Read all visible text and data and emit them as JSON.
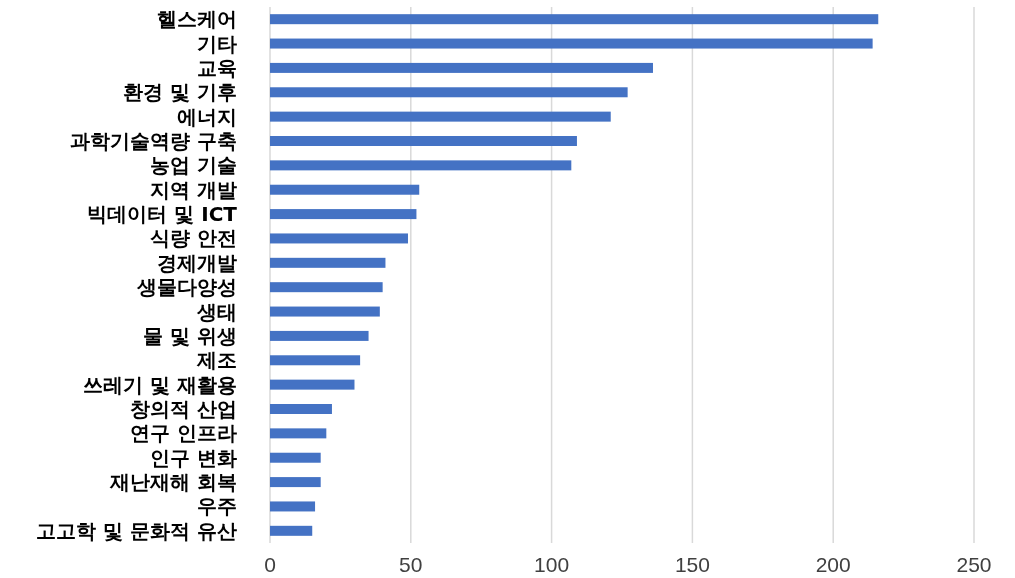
{
  "chart_data": {
    "type": "bar",
    "orientation": "horizontal",
    "categories": [
      "헬스케어",
      "기타",
      "교육",
      "환경 및 기후",
      "에너지",
      "과학기술역량 구축",
      "농업 기술",
      "지역 개발",
      "빅데이터 및 ICT",
      "식량 안전",
      "경제개발",
      "생물다양성",
      "생태",
      "물 및 위생",
      "제조",
      "쓰레기 및 재활용",
      "창의적 산업",
      "연구 인프라",
      "인구 변화",
      "재난재해 회복",
      "우주",
      "고고학 및 문화적 유산"
    ],
    "values": [
      216,
      214,
      136,
      127,
      121,
      109,
      107,
      53,
      52,
      49,
      41,
      40,
      39,
      35,
      32,
      30,
      22,
      20,
      18,
      18,
      16,
      15
    ],
    "color": "#4472c4",
    "xlim": [
      0,
      250
    ],
    "xticks": [
      0,
      50,
      100,
      150,
      200,
      250
    ],
    "grid": "x"
  }
}
